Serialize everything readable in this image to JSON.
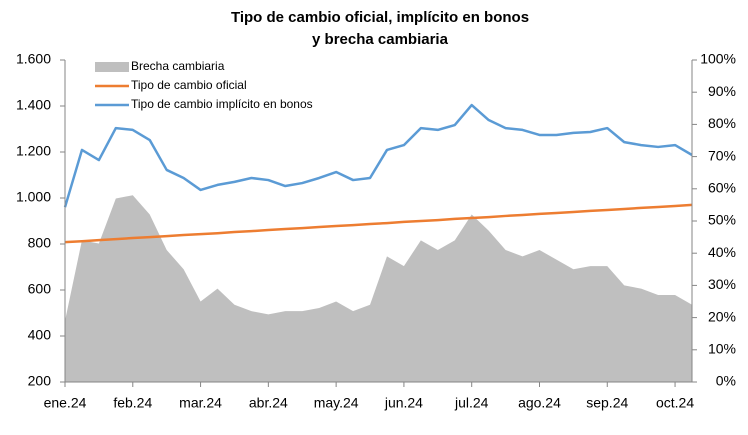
{
  "chart_data": {
    "type": "area-line",
    "title": [
      "Tipo de cambio oficial, implícito en bonos",
      "y brecha cambiaria"
    ],
    "categories": [
      "ene.24",
      null,
      null,
      null,
      "feb.24",
      null,
      null,
      null,
      "mar.24",
      null,
      null,
      null,
      "abr.24",
      null,
      null,
      null,
      "may.24",
      null,
      null,
      null,
      "jun.24",
      null,
      null,
      null,
      "jul.24",
      null,
      null,
      null,
      "ago.24",
      null,
      null,
      null,
      "sep.24",
      null,
      null,
      null,
      "oct.24",
      null
    ],
    "series": [
      {
        "name": "Brecha cambiaria",
        "color": "#bfbfbf",
        "axis": "y2",
        "kind": "area",
        "values": [
          19,
          44,
          43,
          57,
          58,
          52,
          41,
          35,
          25,
          29,
          24,
          22,
          21,
          22,
          22,
          23,
          25,
          22,
          24,
          39,
          36,
          44,
          41,
          44,
          52,
          47,
          41,
          39,
          41,
          38,
          35,
          36,
          36,
          30,
          29,
          27,
          27,
          24
        ]
      },
      {
        "name": "Tipo de cambio oficial",
        "color": "#ed7d31",
        "kind": "line",
        "values": [
          808,
          812,
          817,
          821,
          826,
          830,
          834,
          839,
          843,
          847,
          852,
          856,
          861,
          865,
          869,
          874,
          878,
          882,
          887,
          891,
          896,
          900,
          904,
          909,
          913,
          917,
          922,
          926,
          931,
          935,
          939,
          944,
          948,
          952,
          957,
          961,
          965,
          970
        ]
      },
      {
        "name": "Tipo de cambio implícito en bonos",
        "color": "#5b9bd5",
        "kind": "line",
        "values": [
          960,
          1209,
          1165,
          1304,
          1296,
          1252,
          1122,
          1087,
          1035,
          1057,
          1070,
          1087,
          1078,
          1052,
          1065,
          1087,
          1113,
          1078,
          1087,
          1209,
          1230,
          1304,
          1296,
          1317,
          1404,
          1339,
          1304,
          1296,
          1274,
          1274,
          1283,
          1287,
          1304,
          1243,
          1230,
          1222,
          1230,
          1187
        ]
      }
    ],
    "ylim": [
      200,
      1600
    ],
    "yticks": [
      200,
      400,
      600,
      800,
      {
        "value": 1000,
        "label": "1.000"
      },
      {
        "value": 1200,
        "label": "1.200"
      },
      {
        "value": 1400,
        "label": "1.400"
      },
      {
        "value": 1600,
        "label": "1.600"
      }
    ],
    "y2lim": [
      0,
      100
    ],
    "y2ticks": [
      {
        "value": 0,
        "label": "0%"
      },
      {
        "value": 10,
        "label": "10%"
      },
      {
        "value": 20,
        "label": "20%"
      },
      {
        "value": 30,
        "label": "30%"
      },
      {
        "value": 40,
        "label": "40%"
      },
      {
        "value": 50,
        "label": "50%"
      },
      {
        "value": 60,
        "label": "60%"
      },
      {
        "value": 70,
        "label": "70%"
      },
      {
        "value": 80,
        "label": "80%"
      },
      {
        "value": 90,
        "label": "90%"
      },
      {
        "value": 100,
        "label": "100%"
      }
    ],
    "grid": false,
    "legend": "top-left"
  }
}
